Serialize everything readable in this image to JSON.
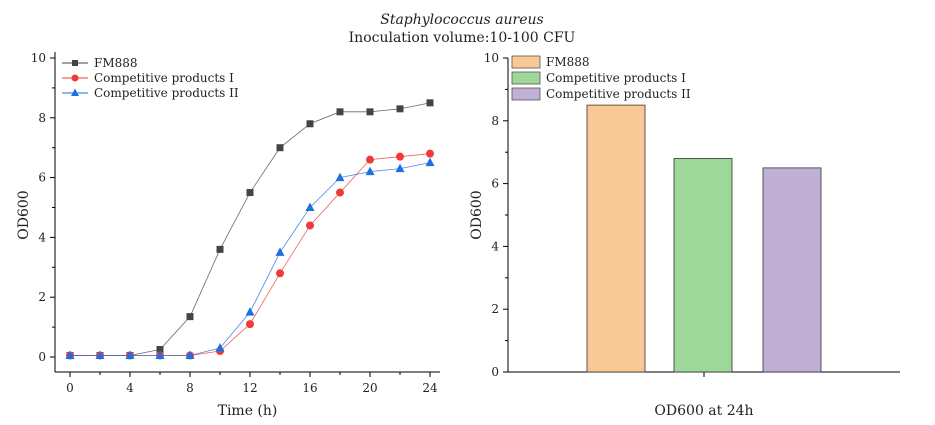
{
  "header": {
    "title": "Staphylococcus aureus",
    "subtitle": "Inoculation volume:10-100 CFU"
  },
  "chart_data": [
    {
      "type": "line",
      "xlabel": "Time (h)",
      "ylabel": "OD600",
      "xlim": [
        0,
        24
      ],
      "ylim": [
        0,
        10
      ],
      "xticks": [
        0,
        4,
        8,
        12,
        16,
        20,
        24
      ],
      "yticks": [
        0,
        2,
        4,
        6,
        8,
        10
      ],
      "grid": false,
      "legend": "top-left",
      "x": [
        0,
        2,
        4,
        6,
        8,
        10,
        12,
        14,
        16,
        18,
        20,
        22,
        24
      ],
      "series": [
        {
          "name": "FM888",
          "color": "#444444",
          "marker": "square",
          "values": [
            0.05,
            0.05,
            0.05,
            0.25,
            1.35,
            3.6,
            5.5,
            7.0,
            7.8,
            8.2,
            8.2,
            8.3,
            8.5
          ]
        },
        {
          "name": "Competitive products I",
          "color": "#f03a3a",
          "marker": "circle",
          "values": [
            0.05,
            0.05,
            0.05,
            0.05,
            0.05,
            0.2,
            1.1,
            2.8,
            4.4,
            5.5,
            6.6,
            6.7,
            6.8
          ]
        },
        {
          "name": "Competitive products II",
          "color": "#1f6fdc",
          "marker": "triangle",
          "values": [
            0.05,
            0.05,
            0.05,
            0.05,
            0.05,
            0.3,
            1.5,
            3.5,
            5.0,
            6.0,
            6.2,
            6.3,
            6.5
          ]
        }
      ]
    },
    {
      "type": "bar",
      "xlabel": "OD600 at 24h",
      "ylabel": "OD600",
      "ylim": [
        0,
        10
      ],
      "yticks": [
        0,
        2,
        4,
        6,
        8,
        10
      ],
      "grid": false,
      "legend": "top-left",
      "categories": [
        "FM888",
        "Competitive products I",
        "Competitive products II"
      ],
      "values": [
        8.5,
        6.8,
        6.5
      ],
      "colors": [
        "#f9c897",
        "#9dd79a",
        "#c0b0d6"
      ]
    }
  ]
}
